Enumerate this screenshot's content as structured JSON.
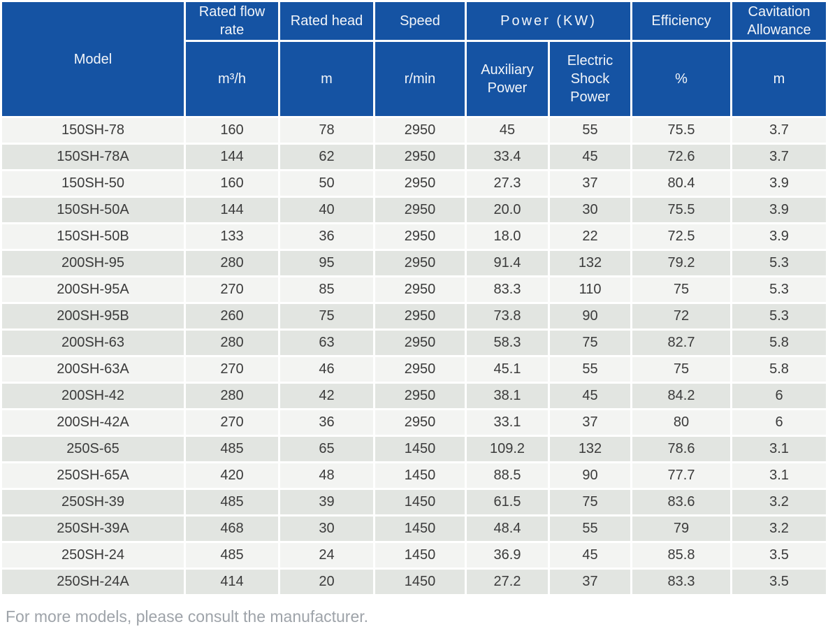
{
  "table": {
    "header": {
      "model": "Model",
      "flow_rate": {
        "label": "Rated flow rate",
        "unit": "m³/h"
      },
      "head": {
        "label": "Rated head",
        "unit": "m"
      },
      "speed": {
        "label": "Speed",
        "unit": "r/min"
      },
      "power": {
        "label": "Power (KW)",
        "sub_columns": [
          "Auxiliary Power",
          "Electric Shock Power"
        ]
      },
      "efficiency": {
        "label": "Efficiency",
        "unit": "%"
      },
      "cavitation": {
        "label": "Cavitation Allowance",
        "unit": "m"
      }
    },
    "rows": [
      [
        "150SH-78",
        "160",
        "78",
        "2950",
        "45",
        "55",
        "75.5",
        "3.7"
      ],
      [
        "150SH-78A",
        "144",
        "62",
        "2950",
        "33.4",
        "45",
        "72.6",
        "3.7"
      ],
      [
        "150SH-50",
        "160",
        "50",
        "2950",
        "27.3",
        "37",
        "80.4",
        "3.9"
      ],
      [
        "150SH-50A",
        "144",
        "40",
        "2950",
        "20.0",
        "30",
        "75.5",
        "3.9"
      ],
      [
        "150SH-50B",
        "133",
        "36",
        "2950",
        "18.0",
        "22",
        "72.5",
        "3.9"
      ],
      [
        "200SH-95",
        "280",
        "95",
        "2950",
        "91.4",
        "132",
        "79.2",
        "5.3"
      ],
      [
        "200SH-95A",
        "270",
        "85",
        "2950",
        "83.3",
        "110",
        "75",
        "5.3"
      ],
      [
        "200SH-95B",
        "260",
        "75",
        "2950",
        "73.8",
        "90",
        "72",
        "5.3"
      ],
      [
        "200SH-63",
        "280",
        "63",
        "2950",
        "58.3",
        "75",
        "82.7",
        "5.8"
      ],
      [
        "200SH-63A",
        "270",
        "46",
        "2950",
        "45.1",
        "55",
        "75",
        "5.8"
      ],
      [
        "200SH-42",
        "280",
        "42",
        "2950",
        "38.1",
        "45",
        "84.2",
        "6"
      ],
      [
        "200SH-42A",
        "270",
        "36",
        "2950",
        "33.1",
        "37",
        "80",
        "6"
      ],
      [
        "250S-65",
        "485",
        "65",
        "1450",
        "109.2",
        "132",
        "78.6",
        "3.1"
      ],
      [
        "250SH-65A",
        "420",
        "48",
        "1450",
        "88.5",
        "90",
        "77.7",
        "3.1"
      ],
      [
        "250SH-39",
        "485",
        "39",
        "1450",
        "61.5",
        "75",
        "83.6",
        "3.2"
      ],
      [
        "250SH-39A",
        "468",
        "30",
        "1450",
        "48.4",
        "55",
        "79",
        "3.2"
      ],
      [
        "250SH-24",
        "485",
        "24",
        "1450",
        "36.9",
        "45",
        "85.8",
        "3.5"
      ],
      [
        "250SH-24A",
        "414",
        "20",
        "1450",
        "27.2",
        "37",
        "83.3",
        "3.5"
      ]
    ]
  },
  "footer": {
    "note": "For more models, please consult the manufacturer."
  },
  "colors": {
    "header_blue": "#1553A3",
    "row_light": "#F3F4F2",
    "row_gray": "#E2E5E1",
    "data_text": "#3B3B3B",
    "header_text": "#F2F5F9",
    "footer_text": "#9EA3A9"
  }
}
